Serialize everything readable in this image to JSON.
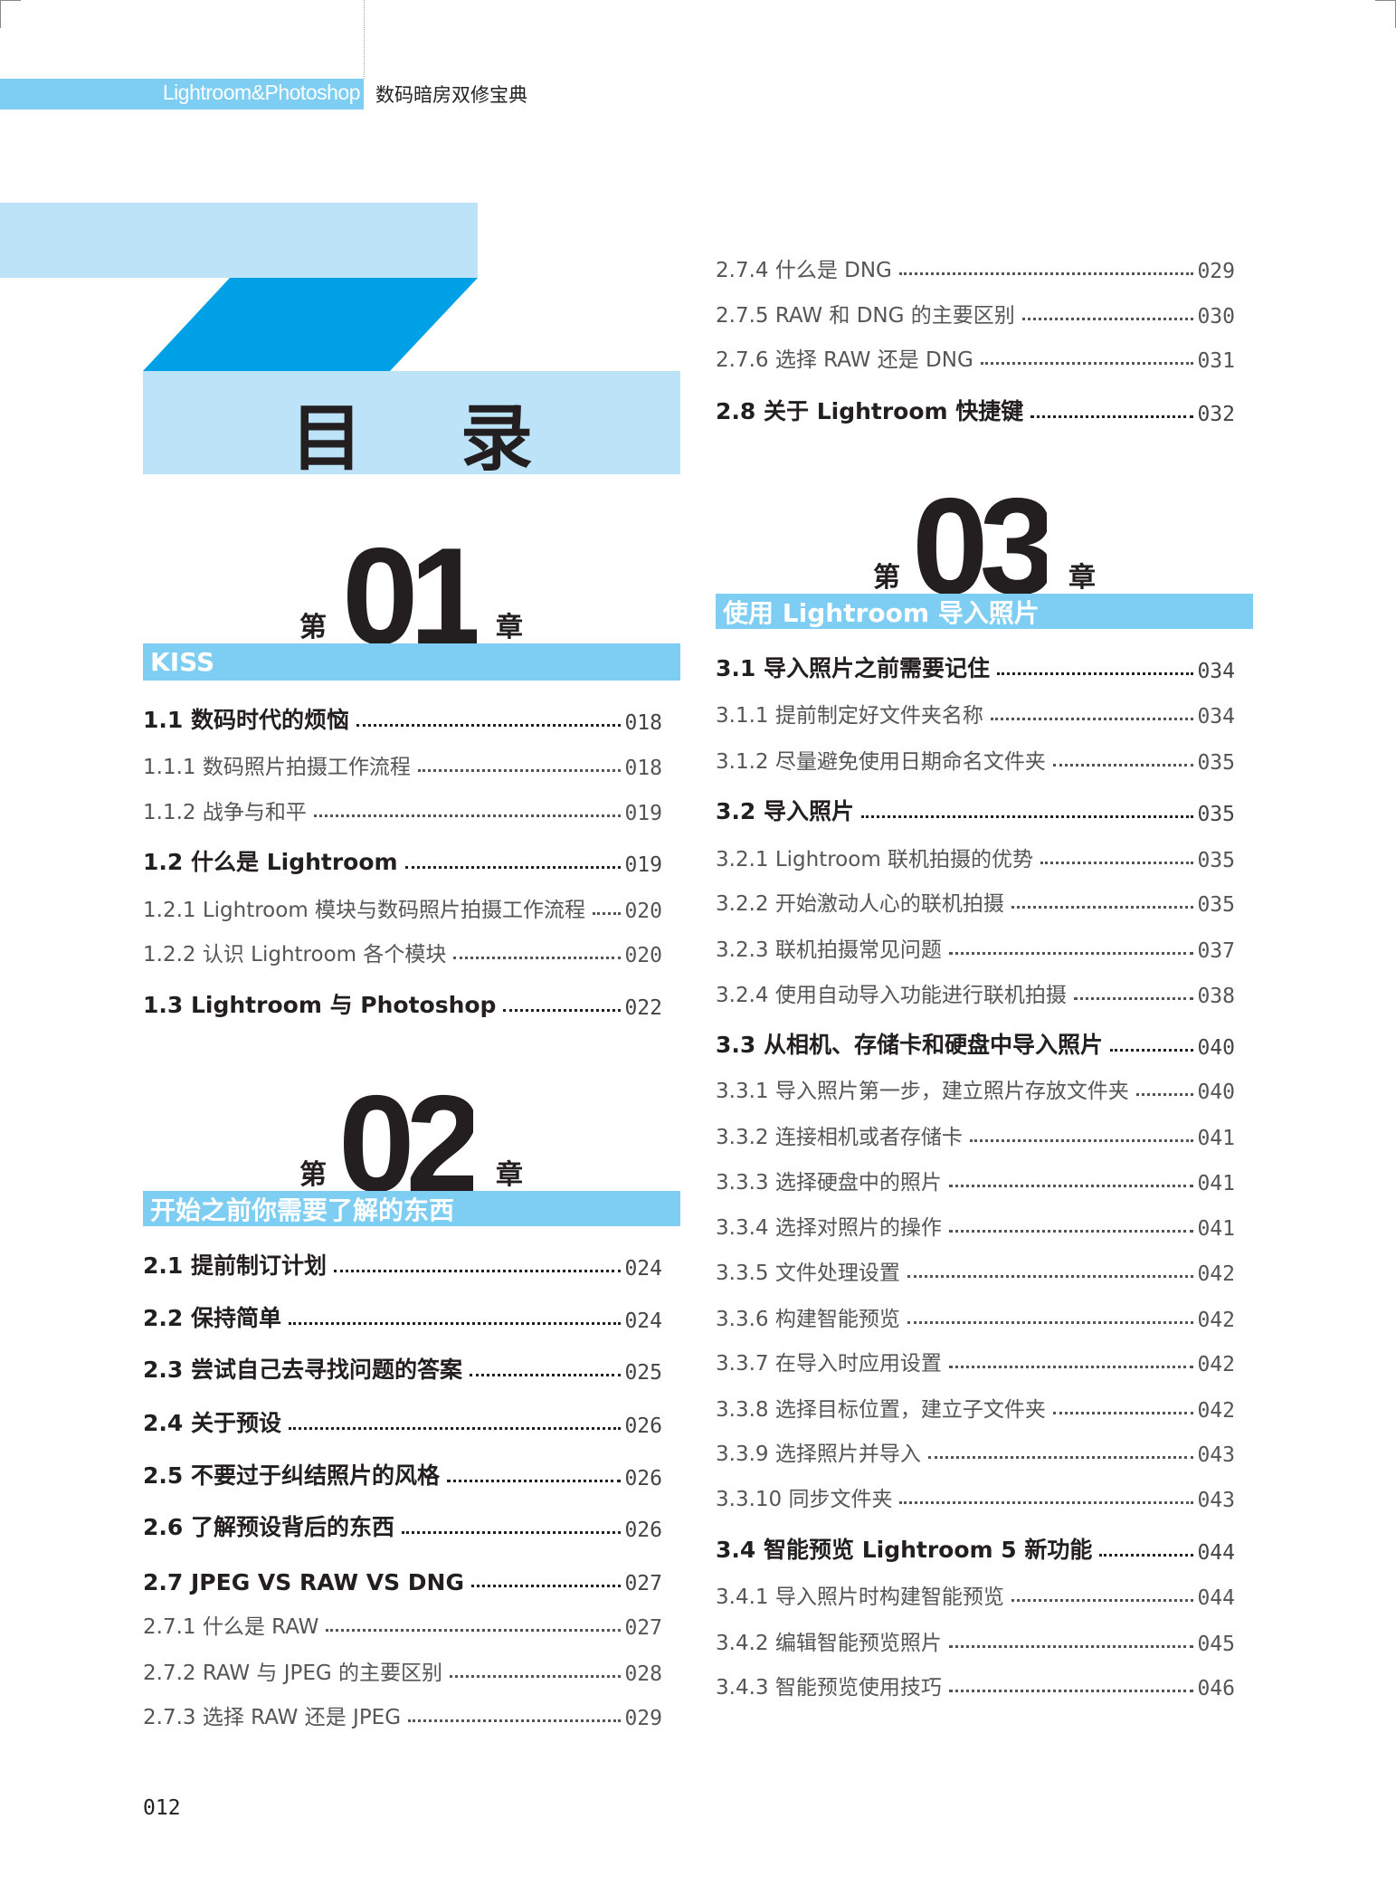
{
  "header": {
    "series": "Lightroom&Photoshop",
    "book_title": "数码暗房双修宝典"
  },
  "title": "目 录",
  "colors": {
    "bar_blue": "#7ecef4",
    "light_blue": "#bce3f8",
    "dark_blue": "#00a0e6",
    "text": "#231f20"
  },
  "chapters": [
    {
      "prefix": "第",
      "number": "01",
      "suffix": "章",
      "title": "KISS",
      "entries": [
        {
          "level": "major",
          "label": "1.1  数码时代的烦恼",
          "page": "018"
        },
        {
          "level": "sub",
          "label": "1.1.1  数码照片拍摄工作流程",
          "page": "018"
        },
        {
          "level": "sub",
          "label": "1.1.2  战争与和平",
          "page": "019"
        },
        {
          "level": "major",
          "label": "1.2  什么是 Lightroom",
          "page": "019"
        },
        {
          "level": "sub",
          "label": "1.2.1  Lightroom 模块与数码照片拍摄工作流程",
          "page": "020"
        },
        {
          "level": "sub",
          "label": "1.2.2  认识 Lightroom 各个模块",
          "page": "020"
        },
        {
          "level": "major",
          "label": "1.3  Lightroom 与 Photoshop",
          "page": "022"
        }
      ]
    },
    {
      "prefix": "第",
      "number": "02",
      "suffix": "章",
      "title": "开始之前你需要了解的东西",
      "entries": [
        {
          "level": "major",
          "label": "2.1  提前制订计划",
          "page": "024"
        },
        {
          "level": "major",
          "label": "2.2  保持简单",
          "page": "024"
        },
        {
          "level": "major",
          "label": "2.3  尝试自己去寻找问题的答案",
          "page": "025"
        },
        {
          "level": "major",
          "label": "2.4  关于预设",
          "page": "026"
        },
        {
          "level": "major",
          "label": "2.5  不要过于纠结照片的风格",
          "page": "026"
        },
        {
          "level": "major",
          "label": "2.6  了解预设背后的东西",
          "page": "026"
        },
        {
          "level": "major",
          "label": "2.7  JPEG  VS  RAW  VS  DNG",
          "page": "027"
        },
        {
          "level": "sub",
          "label": "2.7.1  什么是 RAW",
          "page": "027"
        },
        {
          "level": "sub",
          "label": "2.7.2  RAW 与 JPEG 的主要区别",
          "page": "028"
        },
        {
          "level": "sub",
          "label": "2.7.3  选择 RAW 还是 JPEG",
          "page": "029"
        },
        {
          "level": "sub",
          "label": "2.7.4  什么是 DNG",
          "page": "029"
        },
        {
          "level": "sub",
          "label": "2.7.5  RAW 和 DNG 的主要区别",
          "page": "030"
        },
        {
          "level": "sub",
          "label": "2.7.6  选择 RAW 还是 DNG",
          "page": "031"
        },
        {
          "level": "major",
          "label": "2.8  关于 Lightroom 快捷键",
          "page": "032"
        }
      ]
    },
    {
      "prefix": "第",
      "number": "03",
      "suffix": "章",
      "title": "使用 Lightroom 导入照片",
      "entries": [
        {
          "level": "major",
          "label": "3.1  导入照片之前需要记住",
          "page": "034"
        },
        {
          "level": "sub",
          "label": "3.1.1  提前制定好文件夹名称",
          "page": "034"
        },
        {
          "level": "sub",
          "label": "3.1.2  尽量避免使用日期命名文件夹",
          "page": "035"
        },
        {
          "level": "major",
          "label": "3.2  导入照片",
          "page": "035"
        },
        {
          "level": "sub",
          "label": "3.2.1  Lightroom 联机拍摄的优势",
          "page": "035"
        },
        {
          "level": "sub",
          "label": "3.2.2  开始激动人心的联机拍摄",
          "page": "035"
        },
        {
          "level": "sub",
          "label": "3.2.3  联机拍摄常见问题",
          "page": "037"
        },
        {
          "level": "sub",
          "label": "3.2.4  使用自动导入功能进行联机拍摄",
          "page": "038"
        },
        {
          "level": "major",
          "label": "3.3  从相机、存储卡和硬盘中导入照片",
          "page": "040"
        },
        {
          "level": "sub",
          "label": "3.3.1  导入照片第一步，建立照片存放文件夹",
          "page": "040"
        },
        {
          "level": "sub",
          "label": "3.3.2  连接相机或者存储卡",
          "page": "041"
        },
        {
          "level": "sub",
          "label": "3.3.3  选择硬盘中的照片",
          "page": "041"
        },
        {
          "level": "sub",
          "label": "3.3.4  选择对照片的操作",
          "page": "041"
        },
        {
          "level": "sub",
          "label": "3.3.5  文件处理设置",
          "page": "042"
        },
        {
          "level": "sub",
          "label": "3.3.6  构建智能预览",
          "page": "042"
        },
        {
          "level": "sub",
          "label": "3.3.7  在导入时应用设置",
          "page": "042"
        },
        {
          "level": "sub",
          "label": "3.3.8  选择目标位置，建立子文件夹",
          "page": "042"
        },
        {
          "level": "sub",
          "label": "3.3.9  选择照片并导入",
          "page": "043"
        },
        {
          "level": "sub",
          "label": "3.3.10  同步文件夹",
          "page": "043"
        },
        {
          "level": "major",
          "label": "3.4  智能预览 Lightroom  5 新功能",
          "page": "044"
        },
        {
          "level": "sub",
          "label": "3.4.1  导入照片时构建智能预览",
          "page": "044"
        },
        {
          "level": "sub",
          "label": "3.4.2  编辑智能预览照片",
          "page": "045"
        },
        {
          "level": "sub",
          "label": "3.4.3  智能预览使用技巧",
          "page": "046"
        }
      ]
    }
  ],
  "page_number": "012"
}
